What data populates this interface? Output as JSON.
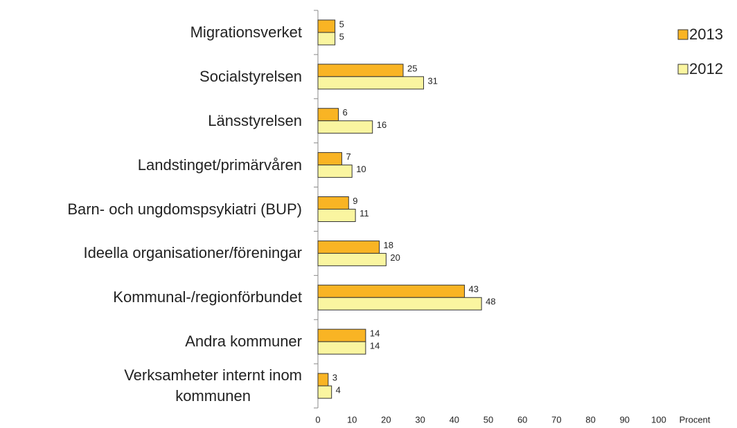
{
  "chart_data": {
    "type": "bar",
    "orientation": "horizontal",
    "categories": [
      "Migrationsverket",
      "Socialstyrelsen",
      "Länsstyrelsen",
      "Landstinget/primärvåren",
      "Barn- och ungdomspsykiatri (BUP)",
      "Ideella organisationer/föreningar",
      "Kommunal-/regionförbundet",
      "Andra kommuner",
      "Verksamheter internt inom\nkommunen"
    ],
    "series": [
      {
        "name": "2013",
        "color": "#f9b424",
        "values": [
          5,
          25,
          6,
          7,
          9,
          18,
          43,
          14,
          3
        ]
      },
      {
        "name": "2012",
        "color": "#faf5a0",
        "values": [
          5,
          31,
          16,
          10,
          11,
          20,
          48,
          14,
          4
        ]
      }
    ],
    "xlim": [
      0,
      100
    ],
    "xticks": [
      0,
      10,
      20,
      30,
      40,
      50,
      60,
      70,
      80,
      90,
      100
    ],
    "xlabel": "Procent",
    "legend": "upper right",
    "grid": false
  }
}
